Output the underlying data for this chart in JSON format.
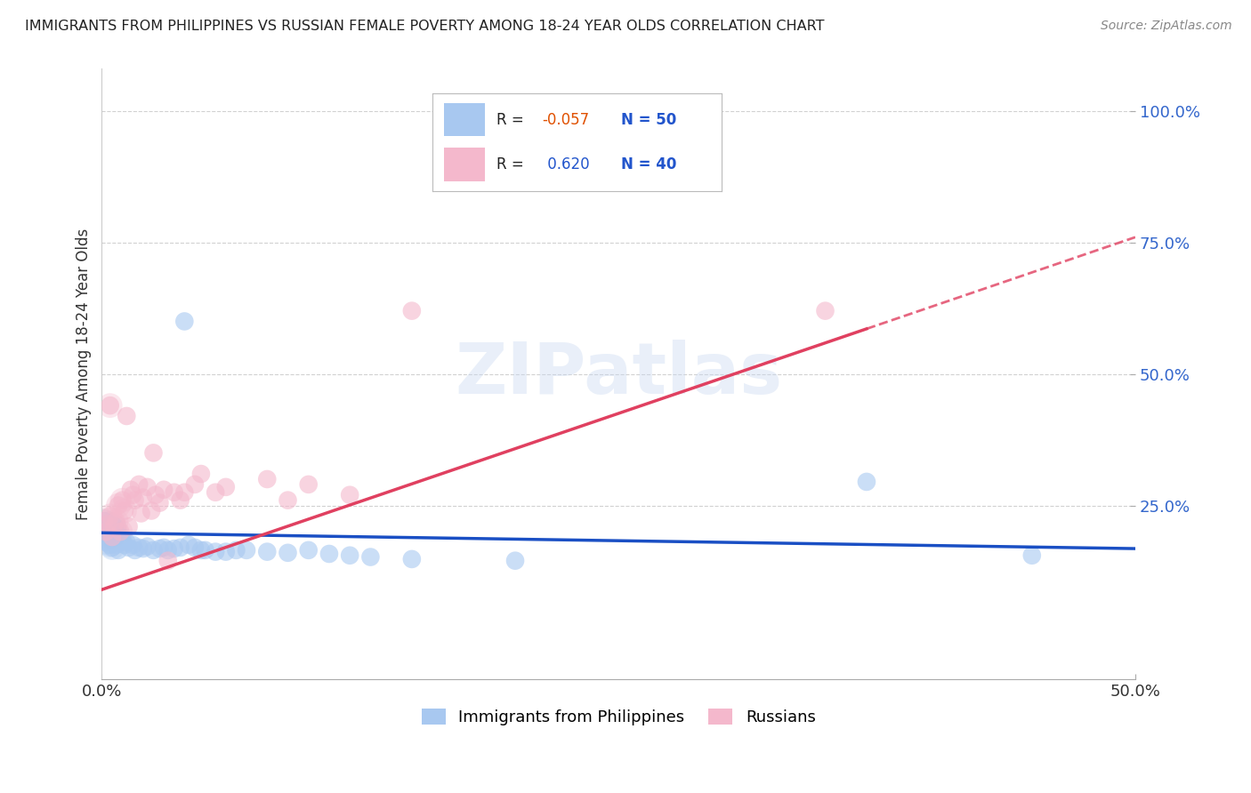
{
  "title": "IMMIGRANTS FROM PHILIPPINES VS RUSSIAN FEMALE POVERTY AMONG 18-24 YEAR OLDS CORRELATION CHART",
  "source": "Source: ZipAtlas.com",
  "ylabel": "Female Poverty Among 18-24 Year Olds",
  "xlim": [
    0.0,
    0.5
  ],
  "ylim": [
    -0.08,
    1.08
  ],
  "xtick_labels": [
    "0.0%",
    "50.0%"
  ],
  "xtick_positions": [
    0.0,
    0.5
  ],
  "ytick_labels": [
    "100.0%",
    "75.0%",
    "50.0%",
    "25.0%"
  ],
  "ytick_positions": [
    1.0,
    0.75,
    0.5,
    0.25
  ],
  "philippines_R": -0.057,
  "philippines_N": 50,
  "russians_R": 0.62,
  "russians_N": 40,
  "philippines_color": "#a8c8f0",
  "russians_color": "#f4b8cc",
  "philippines_line_color": "#1a4fc4",
  "russians_line_color": "#e04060",
  "watermark": "ZIPatlas",
  "background_color": "#ffffff",
  "philippines_scatter": [
    [
      0.001,
      0.22
    ],
    [
      0.002,
      0.2
    ],
    [
      0.002,
      0.18
    ],
    [
      0.003,
      0.215
    ],
    [
      0.003,
      0.19
    ],
    [
      0.004,
      0.2
    ],
    [
      0.004,
      0.175
    ],
    [
      0.005,
      0.195
    ],
    [
      0.005,
      0.17
    ],
    [
      0.006,
      0.21
    ],
    [
      0.006,
      0.185
    ],
    [
      0.007,
      0.195
    ],
    [
      0.007,
      0.175
    ],
    [
      0.008,
      0.18
    ],
    [
      0.008,
      0.165
    ],
    [
      0.009,
      0.19
    ],
    [
      0.01,
      0.185
    ],
    [
      0.011,
      0.175
    ],
    [
      0.012,
      0.18
    ],
    [
      0.013,
      0.17
    ],
    [
      0.015,
      0.175
    ],
    [
      0.016,
      0.165
    ],
    [
      0.018,
      0.17
    ],
    [
      0.02,
      0.168
    ],
    [
      0.022,
      0.172
    ],
    [
      0.025,
      0.165
    ],
    [
      0.028,
      0.168
    ],
    [
      0.03,
      0.17
    ],
    [
      0.032,
      0.165
    ],
    [
      0.035,
      0.168
    ],
    [
      0.038,
      0.17
    ],
    [
      0.04,
      0.6
    ],
    [
      0.042,
      0.175
    ],
    [
      0.045,
      0.17
    ],
    [
      0.048,
      0.165
    ],
    [
      0.05,
      0.165
    ],
    [
      0.055,
      0.162
    ],
    [
      0.06,
      0.162
    ],
    [
      0.065,
      0.165
    ],
    [
      0.07,
      0.165
    ],
    [
      0.08,
      0.162
    ],
    [
      0.09,
      0.16
    ],
    [
      0.1,
      0.165
    ],
    [
      0.11,
      0.158
    ],
    [
      0.12,
      0.155
    ],
    [
      0.13,
      0.152
    ],
    [
      0.15,
      0.148
    ],
    [
      0.2,
      0.145
    ],
    [
      0.37,
      0.295
    ],
    [
      0.45,
      0.155
    ]
  ],
  "russians_scatter": [
    [
      0.001,
      0.22
    ],
    [
      0.002,
      0.2
    ],
    [
      0.003,
      0.215
    ],
    [
      0.004,
      0.23
    ],
    [
      0.004,
      0.44
    ],
    [
      0.005,
      0.19
    ],
    [
      0.006,
      0.21
    ],
    [
      0.007,
      0.22
    ],
    [
      0.008,
      0.25
    ],
    [
      0.009,
      0.2
    ],
    [
      0.01,
      0.26
    ],
    [
      0.011,
      0.24
    ],
    [
      0.012,
      0.42
    ],
    [
      0.013,
      0.21
    ],
    [
      0.014,
      0.28
    ],
    [
      0.015,
      0.27
    ],
    [
      0.016,
      0.26
    ],
    [
      0.018,
      0.29
    ],
    [
      0.019,
      0.235
    ],
    [
      0.02,
      0.265
    ],
    [
      0.022,
      0.285
    ],
    [
      0.024,
      0.24
    ],
    [
      0.025,
      0.35
    ],
    [
      0.026,
      0.27
    ],
    [
      0.028,
      0.255
    ],
    [
      0.03,
      0.28
    ],
    [
      0.032,
      0.145
    ],
    [
      0.035,
      0.275
    ],
    [
      0.038,
      0.26
    ],
    [
      0.04,
      0.275
    ],
    [
      0.045,
      0.29
    ],
    [
      0.048,
      0.31
    ],
    [
      0.055,
      0.275
    ],
    [
      0.06,
      0.285
    ],
    [
      0.08,
      0.3
    ],
    [
      0.09,
      0.26
    ],
    [
      0.1,
      0.29
    ],
    [
      0.12,
      0.27
    ],
    [
      0.15,
      0.62
    ],
    [
      0.35,
      0.62
    ]
  ],
  "philippines_trendline": [
    [
      0.0,
      0.198
    ],
    [
      0.5,
      0.168
    ]
  ],
  "russians_trendline": [
    [
      0.0,
      0.09
    ],
    [
      0.5,
      0.76
    ]
  ],
  "russians_trendline_solid_end": 0.37
}
